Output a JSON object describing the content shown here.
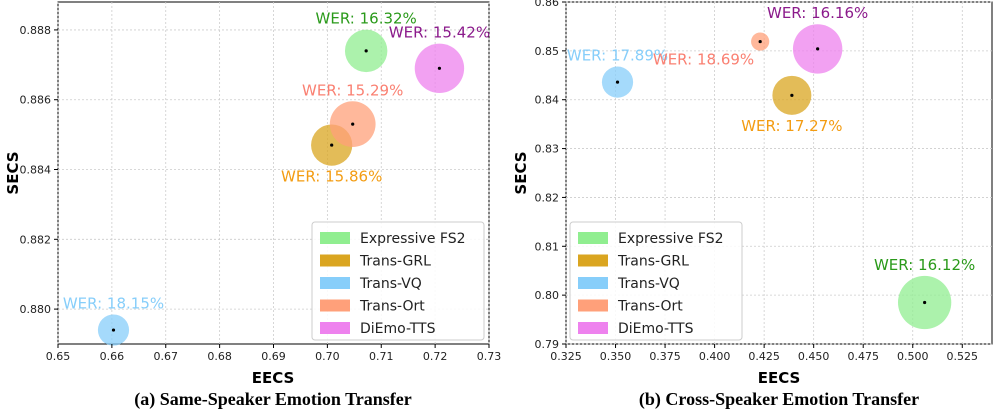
{
  "chart_data": [
    {
      "type": "scatter",
      "caption": "(a) Same-Speaker Emotion Transfer",
      "xlabel": "EECS",
      "ylabel": "SECS",
      "xlim": [
        0.65,
        0.73
      ],
      "ylim": [
        0.879,
        0.8888
      ],
      "xticks": [
        "0.65",
        "0.66",
        "0.67",
        "0.68",
        "0.69",
        "0.70",
        "0.71",
        "0.72",
        "0.73"
      ],
      "yticks": [
        "0.880",
        "0.882",
        "0.884",
        "0.886",
        "0.888"
      ],
      "grid": true,
      "legend_position": "lower-right",
      "points": [
        {
          "name": "Expressive FS2",
          "x": 0.7072,
          "y": 0.8874,
          "wer": "WER: 16.32%",
          "color": "#90ee90",
          "label_color": "#2a9a1a",
          "size": 16.32,
          "label_pos": "above"
        },
        {
          "name": "Trans-GRL",
          "x": 0.7008,
          "y": 0.8847,
          "wer": "WER: 15.86%",
          "color": "#daa520",
          "label_color": "#f39c12",
          "size": 15.86,
          "label_pos": "below"
        },
        {
          "name": "Trans-VQ",
          "x": 0.6603,
          "y": 0.8794,
          "wer": "WER: 18.15%",
          "color": "#87cefa",
          "label_color": "#87cefa",
          "size": 12.0,
          "label_pos": "above"
        },
        {
          "name": "Trans-Ort",
          "x": 0.7047,
          "y": 0.8853,
          "wer": "WER: 15.29%",
          "color": "#ffa07a",
          "label_color": "#fa8072",
          "size": 17.6,
          "label_pos": "above"
        },
        {
          "name": "DiEmo-TTS",
          "x": 0.7208,
          "y": 0.8869,
          "wer": "WER: 15.42%",
          "color": "#ee82ee",
          "label_color": "#8b1a8b",
          "size": 19.0,
          "label_pos": "above"
        }
      ]
    },
    {
      "type": "scatter",
      "caption": "(b) Cross-Speaker Emotion Transfer",
      "xlabel": "EECS",
      "ylabel": "SECS",
      "xlim": [
        0.325,
        0.54
      ],
      "ylim": [
        0.79,
        0.86
      ],
      "xticks": [
        "0.325",
        "0.350",
        "0.375",
        "0.400",
        "0.425",
        "0.450",
        "0.475",
        "0.500",
        "0.525"
      ],
      "yticks": [
        "0.79",
        "0.80",
        "0.81",
        "0.82",
        "0.83",
        "0.84",
        "0.85",
        "0.86"
      ],
      "grid": true,
      "legend_position": "lower-left",
      "points": [
        {
          "name": "Expressive FS2",
          "x": 0.506,
          "y": 0.7985,
          "wer": "WER: 16.12%",
          "color": "#90ee90",
          "label_color": "#2a9a1a",
          "size": 20.5,
          "label_pos": "above"
        },
        {
          "name": "Trans-GRL",
          "x": 0.439,
          "y": 0.8409,
          "wer": "WER: 17.27%",
          "color": "#daa520",
          "label_color": "#f39c12",
          "size": 15.0,
          "label_pos": "below"
        },
        {
          "name": "Trans-VQ",
          "x": 0.351,
          "y": 0.8436,
          "wer": "WER: 17.89%",
          "color": "#87cefa",
          "label_color": "#87cefa",
          "size": 12.0,
          "label_pos": "above"
        },
        {
          "name": "Trans-Ort",
          "x": 0.423,
          "y": 0.8519,
          "wer": "WER: 18.69%",
          "color": "#ffa07a",
          "label_color": "#fa8072",
          "size": 7.0,
          "label_pos": "below-left"
        },
        {
          "name": "DiEmo-TTS",
          "x": 0.452,
          "y": 0.8504,
          "wer": "WER: 16.16%",
          "color": "#ee82ee",
          "label_color": "#8b1a8b",
          "size": 19.0,
          "label_pos": "above"
        }
      ]
    }
  ],
  "legend": [
    "Expressive FS2",
    "Trans-GRL",
    "Trans-VQ",
    "Trans-Ort",
    "DiEmo-TTS"
  ]
}
